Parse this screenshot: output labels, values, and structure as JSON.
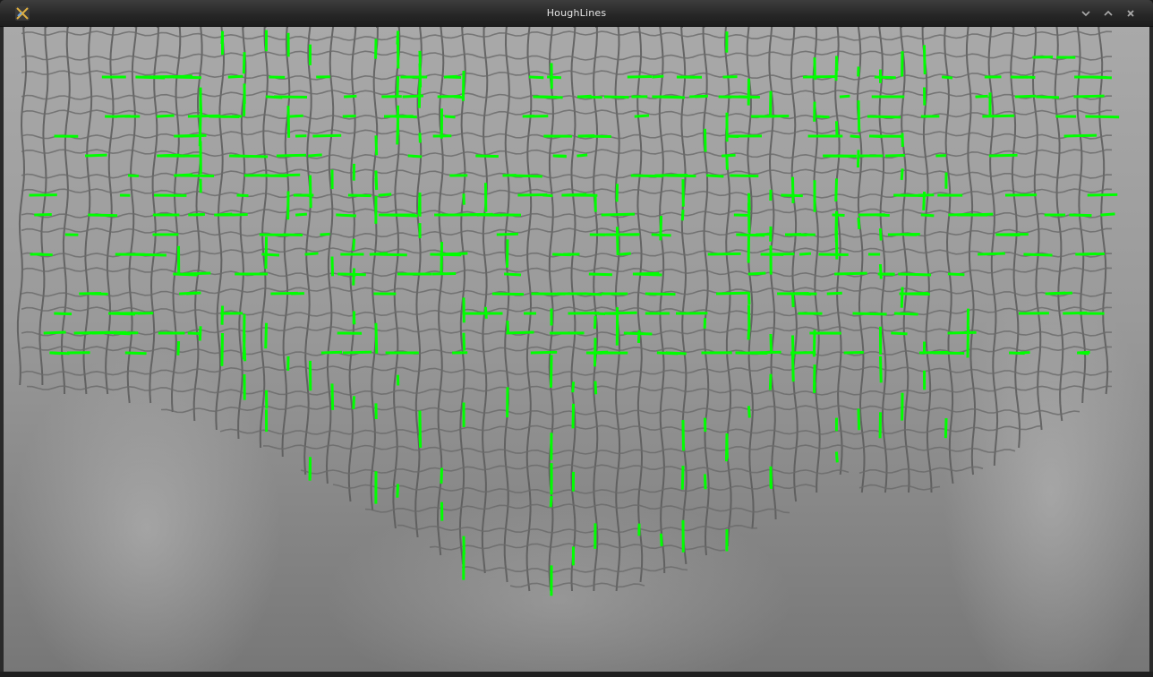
{
  "window": {
    "title": "HoughLines",
    "controls": [
      "minimize-icon",
      "maximize-icon",
      "close-icon"
    ]
  },
  "image": {
    "description_free": true,
    "line_color": "#00ff00",
    "background_top": "#a7a7a7",
    "background_bottom": "#777777"
  }
}
